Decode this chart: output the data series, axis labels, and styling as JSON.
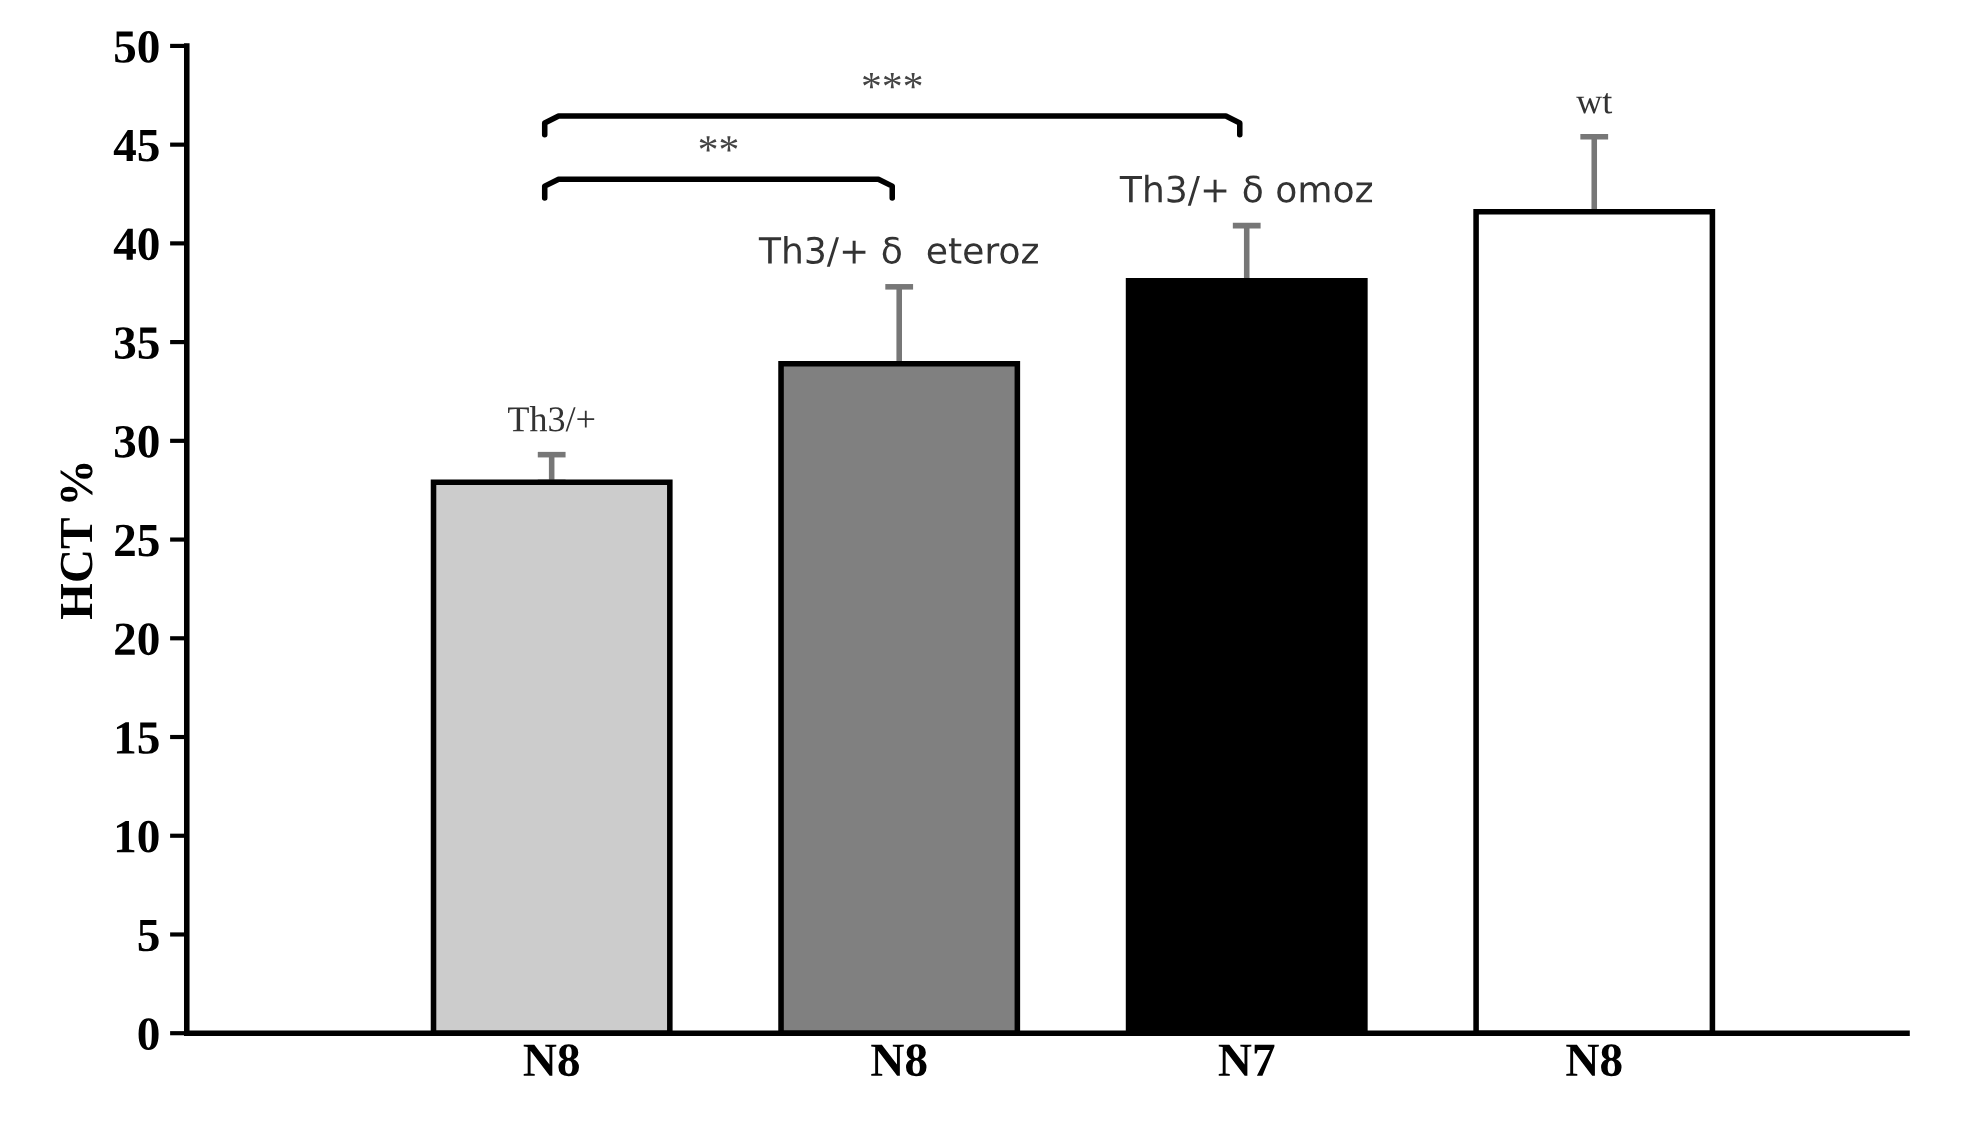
{
  "chart_data": {
    "type": "bar",
    "ylabel": "HCT %",
    "categories": [
      "N8",
      "N8",
      "N7",
      "N8"
    ],
    "values": [
      27.9,
      33.9,
      38.1,
      41.6
    ],
    "errors": [
      [
        27.9,
        29.3
      ],
      [
        33.9,
        37.8
      ],
      [
        38.1,
        40.9
      ],
      [
        41.6,
        45.4
      ]
    ],
    "colors": [
      "#cccccc",
      "#808080",
      "#000000",
      "#ffffff"
    ],
    "ylim": [
      0,
      50
    ],
    "yticks": [
      0,
      5,
      10,
      15,
      20,
      25,
      30,
      35,
      40,
      45,
      50
    ],
    "grid": false,
    "legend": false,
    "annotations": [
      "Th3/+",
      "Th3/+ δ  eteroz",
      "Th3/+ δ omoz",
      "wt",
      "**",
      "***"
    ]
  }
}
